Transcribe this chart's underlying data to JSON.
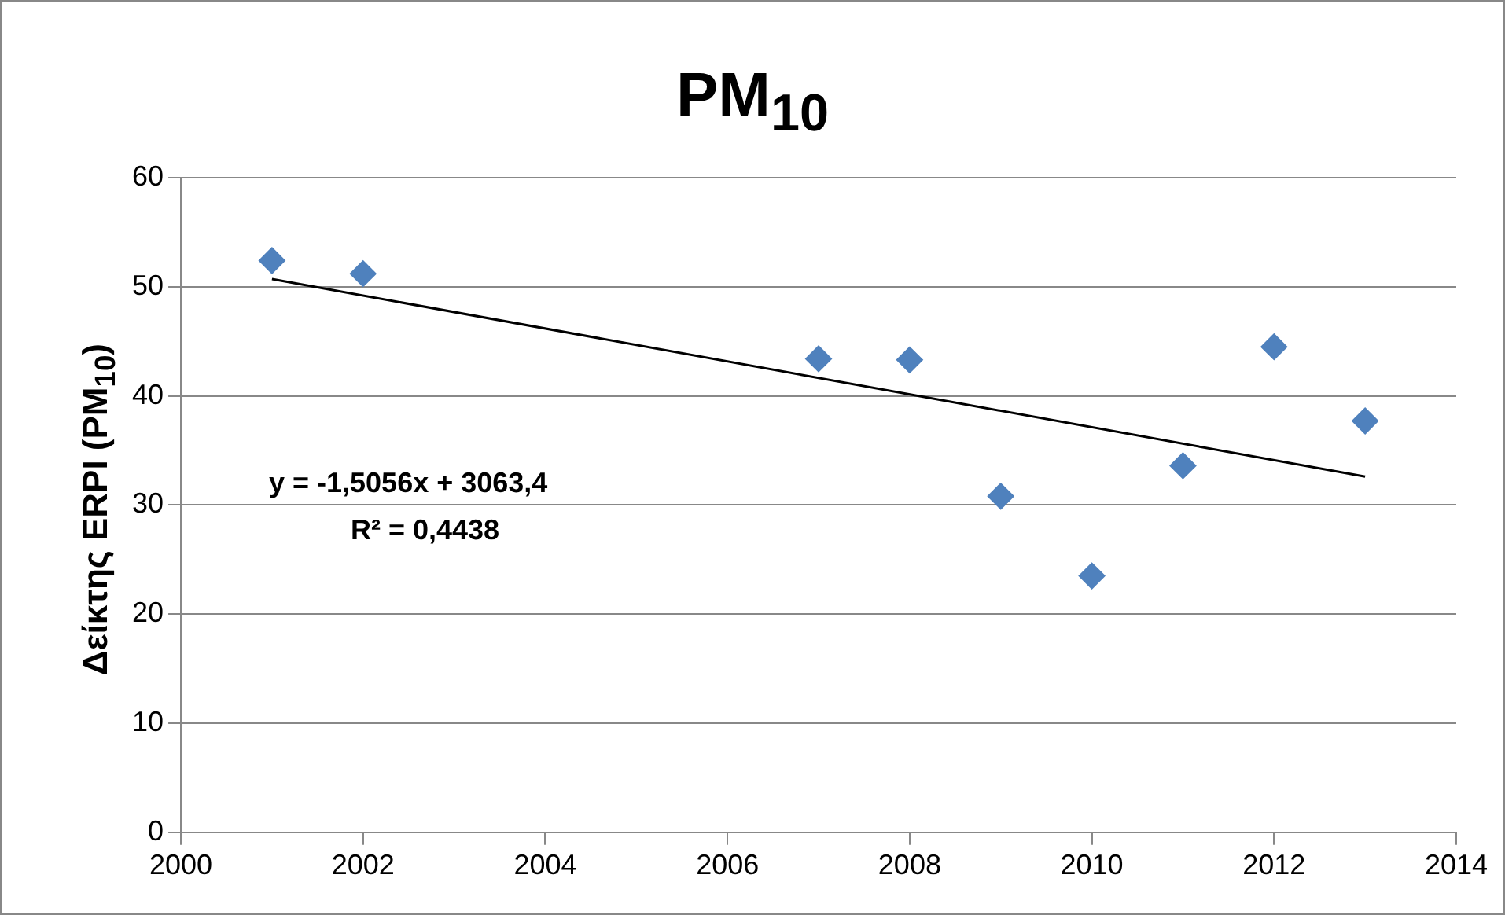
{
  "chart_data": {
    "type": "scatter",
    "title": "PM$_{10}$",
    "ylabel": "Δείκτης ERPI (PM$_{10}$)",
    "annotations": [
      "y = -1,5056x + 3063,4",
      "R² = 0,4438"
    ],
    "series": [
      {
        "color": "#4f81bd",
        "x": [
          2001,
          2002,
          2007,
          2008,
          2009,
          2010,
          2011,
          2012,
          2013
        ],
        "values": [
          52.4,
          51.2,
          43.4,
          43.3,
          30.8,
          23.5,
          33.6,
          44.5,
          37.7
        ],
        "marker": "diamond"
      },
      {
        "type": "line",
        "color": "#000000",
        "x": [
          2001,
          2013
        ],
        "values": [
          50.7,
          32.6
        ],
        "marker": "none",
        "line_style": "solid"
      }
    ],
    "xlim": [
      2000,
      2014
    ],
    "xticks": [
      2000,
      2002,
      2004,
      2006,
      2008,
      2010,
      2012,
      2014
    ],
    "ylim": [
      0,
      60
    ],
    "yticks": [
      0,
      10,
      20,
      30,
      40,
      50,
      60
    ],
    "grid": "y",
    "legend": false
  }
}
